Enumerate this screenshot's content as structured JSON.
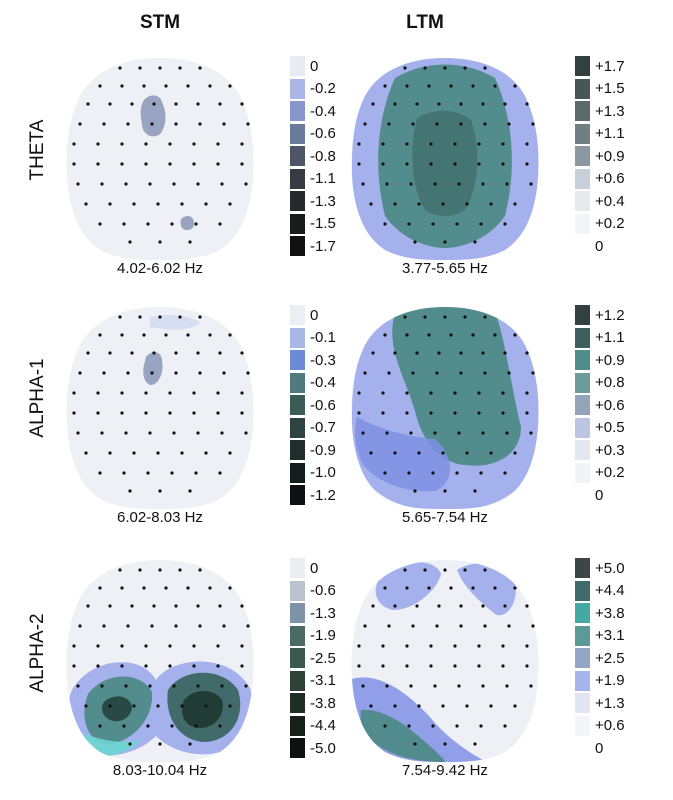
{
  "columns": {
    "stm": "STM",
    "ltm": "LTM"
  },
  "rows": [
    {
      "label": "THETA",
      "stm": {
        "freq": "4.02-6.02 Hz",
        "scale": [
          "0",
          "-0.2",
          "-0.4",
          "-0.6",
          "-0.8",
          "-1.1",
          "-1.3",
          "-1.5",
          "-1.7"
        ],
        "colors": [
          "#e8ebf3",
          "#a9b6e6",
          "#8797cc",
          "#6a7a99",
          "#4d5566",
          "#363b44",
          "#26282c",
          "#1a1b1d",
          "#111111"
        ]
      },
      "ltm": {
        "freq": "3.77-5.65 Hz",
        "scale": [
          "+1.7",
          "+1.5",
          "+1.3",
          "+1.1",
          "+0.9",
          "+0.6",
          "+0.4",
          "+0.2",
          "0"
        ],
        "colors": [
          "#33403f",
          "#4a5655",
          "#5c6a6a",
          "#707f82",
          "#8d97a0",
          "#c8cfd8",
          "#e6e9ee",
          "#f3f4f6",
          "#ffffff"
        ]
      }
    },
    {
      "label": "ALPHA-1",
      "stm": {
        "freq": "6.02-8.03 Hz",
        "scale": [
          "0",
          "-0.1",
          "-0.3",
          "-0.4",
          "-0.6",
          "-0.7",
          "-0.9",
          "-1.0",
          "-1.2"
        ],
        "colors": [
          "#eceef3",
          "#a8b7e4",
          "#6d8ad6",
          "#4f7a7e",
          "#3c5c58",
          "#2d4442",
          "#1f2e2d",
          "#151d1c",
          "#0d1111"
        ]
      },
      "ltm": {
        "freq": "5.65-7.54 Hz",
        "scale": [
          "+1.2",
          "+1.1",
          "+0.9",
          "+0.8",
          "+0.6",
          "+0.5",
          "+0.3",
          "+0.2",
          "0"
        ],
        "colors": [
          "#33403f",
          "#3e5f5c",
          "#4f8c8a",
          "#6d9b9b",
          "#96a4b8",
          "#bcc6e2",
          "#e3e7f0",
          "#f2f3f6",
          "#ffffff"
        ]
      }
    },
    {
      "label": "ALPHA-2",
      "stm": {
        "freq": "8.03-10.04 Hz",
        "scale": [
          "0",
          "-0.6",
          "-1.3",
          "-1.9",
          "-2.5",
          "-3.1",
          "-3.8",
          "-4.4",
          "-5.0"
        ],
        "colors": [
          "#ebedf1",
          "#bcc3cf",
          "#7f93a6",
          "#4a6b63",
          "#3b5a4f",
          "#2c4238",
          "#1e2e27",
          "#142019",
          "#0c120f"
        ]
      },
      "ltm": {
        "freq": "7.54-9.42 Hz",
        "scale": [
          "+5.0",
          "+4.4",
          "+3.8",
          "+3.1",
          "+2.5",
          "+1.9",
          "+1.3",
          "+0.6",
          "0"
        ],
        "colors": [
          "#3b4645",
          "#3f6c68",
          "#45a9a3",
          "#5b9a95",
          "#94a6c6",
          "#a4b6ec",
          "#e2e6f0",
          "#f4f5f8",
          "#ffffff"
        ]
      }
    }
  ],
  "colors": {
    "head_fill": "#eef0f5",
    "electrode": "#111111",
    "blue": "#97a6ea",
    "blue_deep": "#7f90e4",
    "teal": "#4f8a88",
    "teal_dark": "#3c6663",
    "cyan": "#6ad6d0",
    "dark": "#1f3a32",
    "gray_blue": "#8a96b8"
  }
}
